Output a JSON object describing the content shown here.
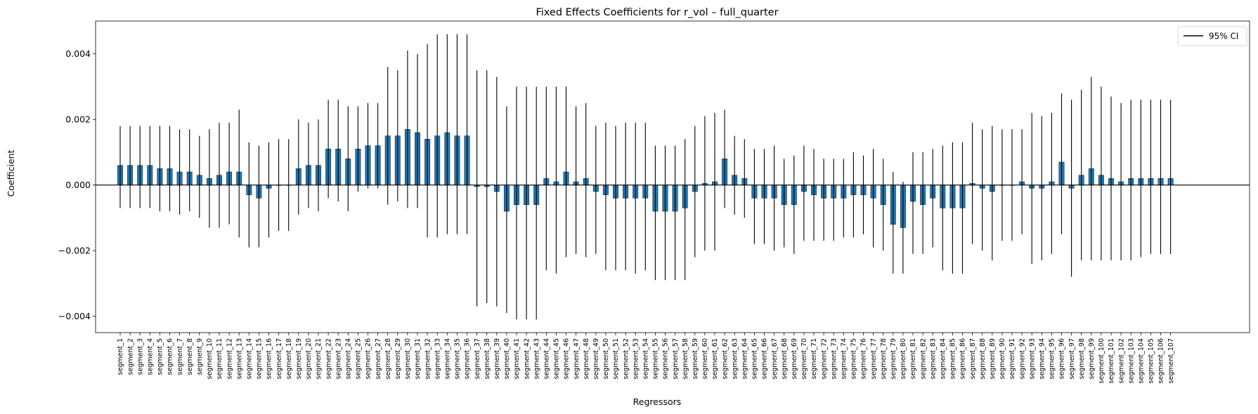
{
  "chart_data": {
    "type": "bar",
    "title": "Fixed Effects Coefficients for r_vol – full_quarter",
    "xlabel": "Regressors",
    "ylabel": "Coefficient",
    "ylim": [
      -0.0045,
      0.005
    ],
    "yticks": [
      -0.004,
      -0.002,
      0.0,
      0.002,
      0.004
    ],
    "ytick_labels": [
      "−0.004",
      "−0.002",
      "0.000",
      "0.002",
      "0.004"
    ],
    "legend": {
      "label": "95% CI",
      "placement": "top-right"
    },
    "bar_color": "#1f77b4",
    "grid": false,
    "zero_line": true,
    "categories": [
      "segment_1",
      "segment_2",
      "segment_3",
      "segment_4",
      "segment_5",
      "segment_6",
      "segment_7",
      "segment_8",
      "segment_9",
      "segment_10",
      "segment_11",
      "segment_12",
      "segment_13",
      "segment_14",
      "segment_15",
      "segment_16",
      "segment_17",
      "segment_18",
      "segment_19",
      "segment_20",
      "segment_21",
      "segment_22",
      "segment_23",
      "segment_24",
      "segment_25",
      "segment_26",
      "segment_27",
      "segment_28",
      "segment_29",
      "segment_30",
      "segment_31",
      "segment_32",
      "segment_33",
      "segment_34",
      "segment_35",
      "segment_36",
      "segment_37",
      "segment_38",
      "segment_39",
      "segment_40",
      "segment_41",
      "segment_42",
      "segment_43",
      "segment_44",
      "segment_45",
      "segment_46",
      "segment_47",
      "segment_48",
      "segment_49",
      "segment_50",
      "segment_51",
      "segment_52",
      "segment_53",
      "segment_54",
      "segment_55",
      "segment_56",
      "segment_57",
      "segment_58",
      "segment_59",
      "segment_60",
      "segment_61",
      "segment_62",
      "segment_63",
      "segment_64",
      "segment_65",
      "segment_66",
      "segment_67",
      "segment_68",
      "segment_69",
      "segment_70",
      "segment_71",
      "segment_72",
      "segment_73",
      "segment_74",
      "segment_75",
      "segment_76",
      "segment_77",
      "segment_78",
      "segment_79",
      "segment_80",
      "segment_81",
      "segment_82",
      "segment_83",
      "segment_84",
      "segment_85",
      "segment_86",
      "segment_87",
      "segment_88",
      "segment_89",
      "segment_90",
      "segment_91",
      "segment_92",
      "segment_93",
      "segment_94",
      "segment_95",
      "segment_96",
      "segment_97",
      "segment_98",
      "segment_99",
      "segment_100",
      "segment_101",
      "segment_102",
      "segment_103",
      "segment_104",
      "segment_105",
      "segment_106",
      "segment_107"
    ],
    "values": [
      0.0006,
      0.0006,
      0.0006,
      0.0006,
      0.0005,
      0.0005,
      0.0004,
      0.0004,
      0.0003,
      0.0002,
      0.0003,
      0.0004,
      0.0004,
      -0.0003,
      -0.0004,
      -0.0001,
      0.0,
      0.0,
      0.0005,
      0.0006,
      0.0006,
      0.0011,
      0.0011,
      0.0008,
      0.0011,
      0.0012,
      0.0012,
      0.0015,
      0.0015,
      0.0017,
      0.0016,
      0.0014,
      0.0015,
      0.0016,
      0.0015,
      0.0015,
      -5e-05,
      -5e-05,
      -0.0002,
      -0.0008,
      -0.0006,
      -0.0006,
      -0.0006,
      0.0002,
      0.0001,
      0.0004,
      0.0001,
      0.0002,
      -0.0002,
      -0.0003,
      -0.0004,
      -0.0004,
      -0.0004,
      -0.0004,
      -0.0008,
      -0.0008,
      -0.0008,
      -0.0007,
      -0.0002,
      5e-05,
      0.0001,
      0.0008,
      0.0003,
      0.0002,
      -0.0004,
      -0.0004,
      -0.0004,
      -0.0006,
      -0.0006,
      -0.0002,
      -0.0003,
      -0.0004,
      -0.0004,
      -0.0004,
      -0.0003,
      -0.0003,
      -0.0004,
      -0.0006,
      -0.0012,
      -0.0013,
      -0.0005,
      -0.0006,
      -0.0004,
      -0.0007,
      -0.0007,
      -0.0007,
      5e-05,
      -0.0001,
      -0.0002,
      0.0,
      0.0,
      0.0001,
      -0.0001,
      -0.0001,
      0.0001,
      0.0007,
      -0.0001,
      0.0003,
      0.0005,
      0.0003,
      0.0002,
      0.0001,
      0.0002,
      0.0002,
      0.0002,
      0.0002,
      0.0002
    ],
    "ci_low": [
      -0.0007,
      -0.0007,
      -0.0007,
      -0.0007,
      -0.0008,
      -0.0008,
      -0.0009,
      -0.0008,
      -0.001,
      -0.0013,
      -0.0013,
      -0.0012,
      -0.0016,
      -0.0019,
      -0.0019,
      -0.0016,
      -0.0014,
      -0.0014,
      -0.0009,
      -0.0007,
      -0.0008,
      -0.0004,
      -0.0005,
      -0.0008,
      -0.0002,
      -0.0001,
      -0.0001,
      -0.0006,
      -0.0005,
      -0.0007,
      -0.0007,
      -0.0016,
      -0.0016,
      -0.0015,
      -0.0015,
      -0.0015,
      -0.0037,
      -0.0036,
      -0.0037,
      -0.0039,
      -0.0041,
      -0.0041,
      -0.0041,
      -0.0026,
      -0.0027,
      -0.0022,
      -0.0021,
      -0.0022,
      -0.0021,
      -0.0026,
      -0.0026,
      -0.0026,
      -0.0027,
      -0.0026,
      -0.0029,
      -0.0029,
      -0.0029,
      -0.0029,
      -0.0022,
      -0.002,
      -0.002,
      -0.0007,
      -0.0009,
      -0.001,
      -0.0018,
      -0.0018,
      -0.002,
      -0.0019,
      -0.0021,
      -0.0017,
      -0.0017,
      -0.0017,
      -0.0017,
      -0.0016,
      -0.0016,
      -0.0015,
      -0.0019,
      -0.002,
      -0.0027,
      -0.0027,
      -0.0021,
      -0.0021,
      -0.0019,
      -0.0026,
      -0.0027,
      -0.0027,
      -0.0018,
      -0.002,
      -0.0023,
      -0.0017,
      -0.0017,
      -0.0015,
      -0.0024,
      -0.0023,
      -0.0021,
      -0.0015,
      -0.0028,
      -0.0023,
      -0.0023,
      -0.0023,
      -0.0023,
      -0.0023,
      -0.0023,
      -0.0022,
      -0.0021,
      -0.0021,
      -0.0021
    ],
    "ci_high": [
      0.0018,
      0.0018,
      0.0018,
      0.0018,
      0.0018,
      0.0018,
      0.0017,
      0.0017,
      0.0015,
      0.0017,
      0.0019,
      0.0019,
      0.0023,
      0.0013,
      0.0012,
      0.0013,
      0.0014,
      0.0014,
      0.002,
      0.0019,
      0.002,
      0.0026,
      0.0026,
      0.0024,
      0.0024,
      0.0025,
      0.0025,
      0.0036,
      0.0035,
      0.0041,
      0.004,
      0.0043,
      0.0046,
      0.0046,
      0.0046,
      0.0046,
      0.0035,
      0.0035,
      0.0033,
      0.0024,
      0.003,
      0.003,
      0.003,
      0.003,
      0.003,
      0.003,
      0.0024,
      0.0025,
      0.0018,
      0.0019,
      0.0018,
      0.0019,
      0.0019,
      0.0019,
      0.0012,
      0.0012,
      0.0012,
      0.0014,
      0.0018,
      0.0021,
      0.0022,
      0.0023,
      0.0015,
      0.0014,
      0.0011,
      0.0011,
      0.0012,
      0.0008,
      0.0009,
      0.0012,
      0.0011,
      0.0008,
      0.0008,
      0.0008,
      0.001,
      0.0009,
      0.0011,
      0.0008,
      0.0004,
      0.0001,
      0.001,
      0.001,
      0.0011,
      0.0012,
      0.0013,
      0.0013,
      0.0019,
      0.0017,
      0.0018,
      0.0017,
      0.0017,
      0.0017,
      0.0022,
      0.0021,
      0.0022,
      0.0028,
      0.0026,
      0.0029,
      0.0033,
      0.003,
      0.0027,
      0.0025,
      0.0026,
      0.0026,
      0.0026,
      0.0026,
      0.0026
    ]
  }
}
